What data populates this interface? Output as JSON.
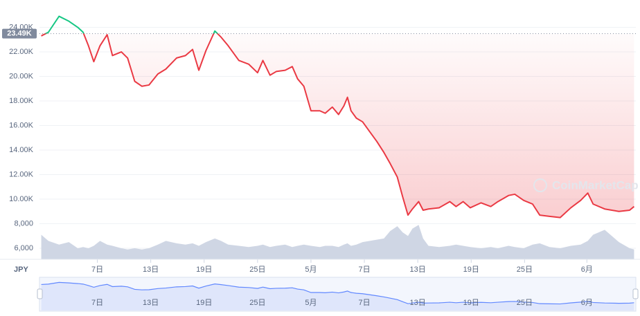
{
  "chart_data": {
    "type": "line",
    "currency": "JPY",
    "watermark": "CoinMarketCap",
    "up_color": "#16c784",
    "down_color": "#ea3943",
    "volume_color": "#cfd6e4",
    "navigator_color": "#6188ff",
    "baseline": {
      "value": 23490,
      "label": "23.49K"
    },
    "xlim": [
      -0.5,
      66.5
    ],
    "xticks": [
      {
        "value": 6,
        "label": "7日"
      },
      {
        "value": 12,
        "label": "13日"
      },
      {
        "value": 18,
        "label": "19日"
      },
      {
        "value": 24,
        "label": "25日"
      },
      {
        "value": 30,
        "label": "5月"
      },
      {
        "value": 36,
        "label": "7日"
      },
      {
        "value": 42,
        "label": "13日"
      },
      {
        "value": 48,
        "label": "19日"
      },
      {
        "value": 54,
        "label": "25日"
      },
      {
        "value": 61,
        "label": "6月"
      }
    ],
    "ylim": [
      5100,
      25100
    ],
    "yticks": [
      {
        "value": 6000,
        "label": "6,000"
      },
      {
        "value": 8000,
        "label": "8,000"
      },
      {
        "value": 10000,
        "label": "10.00K"
      },
      {
        "value": 12000,
        "label": "12.00K"
      },
      {
        "value": 14000,
        "label": "14.00K"
      },
      {
        "value": 16000,
        "label": "16.00K"
      },
      {
        "value": 18000,
        "label": "18.00K"
      },
      {
        "value": 20000,
        "label": "20.00K"
      },
      {
        "value": 22000,
        "label": "22.00K"
      },
      {
        "value": 24000,
        "label": "24.00K"
      }
    ],
    "grid": true,
    "x": [
      -0.3,
      0.5,
      1.7,
      2.8,
      3.8,
      4.4,
      5.0,
      5.6,
      6.3,
      7.1,
      7.7,
      8.7,
      9.4,
      10.2,
      11.0,
      11.8,
      12.8,
      13.7,
      14.9,
      15.9,
      16.7,
      17.4,
      18.2,
      19.2,
      19.9,
      20.7,
      21.9,
      23.0,
      24.0,
      24.6,
      25.4,
      26.1,
      27.1,
      27.9,
      28.5,
      29.2,
      30.0,
      31.0,
      31.6,
      32.4,
      33.1,
      33.7,
      34.1,
      34.5,
      35.1,
      35.8,
      36.6,
      37.4,
      38.2,
      38.9,
      39.7,
      40.3,
      40.9,
      41.4,
      42.1,
      42.6,
      43.2,
      44.4,
      45.6,
      46.3,
      47.1,
      47.9,
      49.1,
      50.2,
      51.0,
      52.2,
      52.9,
      53.9,
      54.9,
      55.7,
      56.8,
      58.0,
      59.2,
      60.3,
      61.1,
      61.7,
      63.0,
      64.6,
      65.8,
      66.3
    ],
    "values": [
      23300,
      23600,
      24900,
      24500,
      24000,
      23600,
      22500,
      21200,
      22500,
      23400,
      21700,
      22000,
      21500,
      19600,
      19200,
      19300,
      20200,
      20600,
      21500,
      21700,
      22200,
      20500,
      22100,
      23700,
      23200,
      22500,
      21300,
      21000,
      20300,
      21300,
      20100,
      20400,
      20500,
      20800,
      19800,
      19200,
      17200,
      17200,
      17000,
      17500,
      16900,
      17600,
      18300,
      17200,
      16600,
      16300,
      15500,
      14700,
      13800,
      12900,
      11800,
      10200,
      8700,
      9200,
      9800,
      9100,
      9200,
      9300,
      9800,
      9400,
      9800,
      9300,
      9700,
      9400,
      9800,
      10300,
      10400,
      9900,
      9600,
      8700,
      8600,
      8500,
      9300,
      9900,
      10500,
      9600,
      9200,
      9000,
      9100,
      9400
    ],
    "volume": [
      7100,
      6600,
      6300,
      6500,
      6000,
      6100,
      6000,
      6200,
      6600,
      6300,
      6200,
      6000,
      5900,
      6000,
      5900,
      6000,
      6300,
      6600,
      6400,
      6300,
      6400,
      6200,
      6500,
      6800,
      6600,
      6300,
      6200,
      6100,
      6200,
      6300,
      6100,
      6200,
      6300,
      6100,
      6200,
      6300,
      6200,
      6100,
      6200,
      6200,
      6100,
      6300,
      6400,
      6200,
      6300,
      6500,
      6600,
      6700,
      6800,
      7400,
      7800,
      7300,
      7000,
      7600,
      7900,
      6800,
      6200,
      6100,
      6200,
      6300,
      6200,
      6100,
      6000,
      6100,
      6000,
      6200,
      6100,
      6000,
      6300,
      6400,
      6100,
      6000,
      6200,
      6300,
      6600,
      7100,
      7500,
      6500,
      6000,
      5900
    ]
  }
}
